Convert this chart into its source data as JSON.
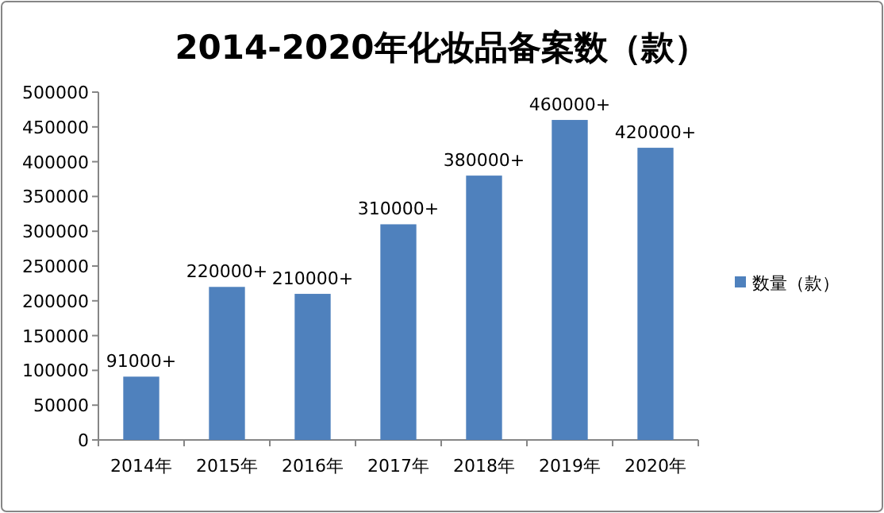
{
  "chart_data": {
    "type": "bar",
    "title": "2014-2020年化妆品备案数（款）",
    "categories": [
      "2014年",
      "2015年",
      "2016年",
      "2017年",
      "2018年",
      "2019年",
      "2020年"
    ],
    "series": [
      {
        "name": "数量（款）",
        "color": "#4f81bd",
        "values": [
          91000,
          220000,
          210000,
          310000,
          380000,
          460000,
          420000
        ],
        "value_labels": [
          "91000+",
          "220000+",
          "210000+",
          "310000+",
          "380000+",
          "460000+",
          "420000+"
        ]
      }
    ],
    "ylim": [
      0,
      500000
    ],
    "yticks": [
      0,
      50000,
      100000,
      150000,
      200000,
      250000,
      300000,
      350000,
      400000,
      450000,
      500000
    ],
    "legend": "right"
  }
}
